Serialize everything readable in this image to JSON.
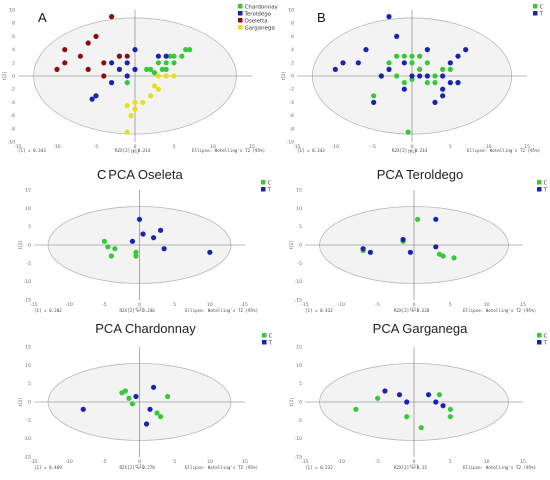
{
  "colors": {
    "Chardonnay": "#37c837",
    "Teroldego": "#1a22b0",
    "Oseletta": "#8b0d12",
    "Garganega": "#e8dc22",
    "C": "#37c837",
    "T": "#1a22b0",
    "ellipse_fill": "#f3f3f3",
    "ellipse_stroke": "#b8b8b8",
    "axis": "#777777"
  },
  "chart_data": [
    {
      "id": "A",
      "type": "scatter",
      "panel_label": "A",
      "title": "",
      "legend_position": "top-right",
      "xlim": [
        -15,
        15
      ],
      "ylim": [
        -10,
        10
      ],
      "xticks": [
        -15,
        -10,
        -5,
        0,
        5,
        10,
        15
      ],
      "yticks": [
        -10,
        -8,
        -6,
        -4,
        -2,
        0,
        2,
        4,
        6,
        8,
        10
      ],
      "xlabel": "t[1]",
      "ylabel": "t[2]",
      "ellipse": [
        13,
        8.8
      ],
      "footer": [
        "[1] = 0.343",
        "R2X[2] = 0.214",
        "Ellipse: Hotelling's T2 (95%)"
      ],
      "series": [
        {
          "name": "Chardonnay",
          "points": [
            [
              2.5,
              0.5
            ],
            [
              3.5,
              1
            ],
            [
              4,
              1
            ],
            [
              5,
              2
            ],
            [
              5,
              3
            ],
            [
              6,
              3
            ],
            [
              7,
              4
            ],
            [
              6.5,
              4
            ],
            [
              4,
              2
            ],
            [
              4.5,
              3
            ],
            [
              1.5,
              1
            ],
            [
              2,
              1
            ],
            [
              3,
              2
            ],
            [
              -1,
              -1
            ]
          ]
        },
        {
          "name": "Teroldego",
          "points": [
            [
              -5,
              -3
            ],
            [
              -5.5,
              -3.5
            ],
            [
              -3,
              -1
            ],
            [
              -3,
              2
            ],
            [
              -2,
              1
            ],
            [
              -1,
              0
            ],
            [
              0,
              1
            ],
            [
              0,
              4
            ],
            [
              3,
              3
            ],
            [
              4,
              3
            ],
            [
              -1,
              2
            ]
          ]
        },
        {
          "name": "Oseletta",
          "points": [
            [
              -10,
              1
            ],
            [
              -9,
              2
            ],
            [
              -9,
              4
            ],
            [
              -7,
              3
            ],
            [
              -6,
              1
            ],
            [
              -6,
              5
            ],
            [
              -5,
              6
            ],
            [
              -4,
              2
            ],
            [
              -4,
              0
            ],
            [
              -2,
              3
            ],
            [
              -1,
              3
            ],
            [
              -3,
              9
            ],
            [
              -2,
              3
            ]
          ]
        },
        {
          "name": "Garganega",
          "points": [
            [
              3,
              0
            ],
            [
              4,
              0
            ],
            [
              5,
              0
            ],
            [
              3,
              -2
            ],
            [
              2,
              -3
            ],
            [
              1,
              -4
            ],
            [
              0,
              -4
            ],
            [
              0,
              -5
            ],
            [
              -1,
              -4.5
            ],
            [
              -0.5,
              -6
            ],
            [
              -1,
              -8.5
            ],
            [
              2.5,
              -1.5
            ]
          ]
        }
      ]
    },
    {
      "id": "B",
      "type": "scatter",
      "panel_label": "B",
      "title": "",
      "legend_position": "top-right",
      "xlim": [
        -15,
        15
      ],
      "ylim": [
        -10,
        10
      ],
      "xticks": [
        -15,
        -10,
        -5,
        0,
        5,
        10,
        15
      ],
      "yticks": [
        -10,
        -8,
        -6,
        -4,
        -2,
        0,
        2,
        4,
        6,
        8,
        10
      ],
      "xlabel": "t[1]",
      "ylabel": "t[2]",
      "ellipse": [
        13,
        8.8
      ],
      "footer": [
        "[1] = 0.343",
        "R2X[2] = 0.214",
        "Ellipse: Hotelling's T2 (95%)"
      ],
      "series": [
        {
          "name": "C",
          "points": [
            [
              -5,
              -3
            ],
            [
              -4,
              0
            ],
            [
              -3,
              2
            ],
            [
              -2,
              3
            ],
            [
              -1,
              3
            ],
            [
              0,
              2
            ],
            [
              0,
              3
            ],
            [
              1,
              3
            ],
            [
              1,
              1
            ],
            [
              2,
              2
            ],
            [
              2,
              -1
            ],
            [
              3,
              0
            ],
            [
              3,
              -1
            ],
            [
              4,
              1
            ],
            [
              5,
              1
            ],
            [
              6,
              -1
            ],
            [
              -1,
              -1
            ],
            [
              -2,
              0
            ],
            [
              0,
              -0.5
            ],
            [
              -0.5,
              -8.5
            ]
          ]
        },
        {
          "name": "T",
          "points": [
            [
              -10,
              1
            ],
            [
              -9,
              2
            ],
            [
              -7,
              2
            ],
            [
              -6,
              4
            ],
            [
              -5,
              -4
            ],
            [
              -4,
              0
            ],
            [
              -3,
              1
            ],
            [
              -2,
              6
            ],
            [
              -3,
              9
            ],
            [
              -1,
              2
            ],
            [
              0,
              0
            ],
            [
              2,
              4
            ],
            [
              2,
              0
            ],
            [
              4,
              0
            ],
            [
              4,
              -2
            ],
            [
              5,
              2
            ],
            [
              6,
              3
            ],
            [
              5,
              -1
            ],
            [
              6,
              -1
            ],
            [
              3,
              -4
            ],
            [
              4,
              -3
            ],
            [
              7,
              4
            ],
            [
              1,
              0
            ],
            [
              -1,
              -2
            ]
          ]
        }
      ]
    },
    {
      "id": "C1",
      "type": "scatter",
      "panel_label": "C",
      "title": "PCA Oseleta",
      "legend_position": "top-right",
      "xlim": [
        -15,
        15
      ],
      "ylim": [
        -15,
        15
      ],
      "xticks": [
        -15,
        -10,
        -5,
        0,
        5,
        10,
        15
      ],
      "yticks": [
        -15,
        -10,
        -5,
        0,
        5,
        10,
        15
      ],
      "xlabel": "t[1]",
      "ylabel": "t[2]",
      "ellipse": [
        13,
        10.5
      ],
      "footer": [
        "[1] = 0.202",
        "R2X[2] = 0.246",
        "Ellipse: Hotelling's T2 (95%)"
      ],
      "series": [
        {
          "name": "C",
          "points": [
            [
              -5,
              1
            ],
            [
              -4.5,
              -0.5
            ],
            [
              -3.5,
              -1
            ],
            [
              -4,
              -3
            ],
            [
              -0.5,
              -2
            ],
            [
              -0.5,
              -3
            ]
          ]
        },
        {
          "name": "T",
          "points": [
            [
              -1,
              1
            ],
            [
              0,
              7
            ],
            [
              0.5,
              3
            ],
            [
              2,
              2
            ],
            [
              3,
              4
            ],
            [
              3.5,
              -1
            ],
            [
              10,
              -2
            ]
          ]
        }
      ]
    },
    {
      "id": "C2",
      "type": "scatter",
      "panel_label": "",
      "title": "PCA Teroldego",
      "legend_position": "top-right",
      "xlim": [
        -15,
        15
      ],
      "ylim": [
        -15,
        15
      ],
      "xticks": [
        -15,
        -10,
        -5,
        0,
        5,
        10,
        15
      ],
      "yticks": [
        -15,
        -10,
        -5,
        0,
        5,
        10,
        15
      ],
      "xlabel": "t[1]",
      "ylabel": "t[2]",
      "ellipse": [
        13,
        10.5
      ],
      "footer": [
        "[1] = 0.432",
        "R2X[2] = 0.228",
        "Ellipse: Hotelling's T2 (95%)"
      ],
      "series": [
        {
          "name": "C",
          "points": [
            [
              0.5,
              7
            ],
            [
              -1.5,
              1
            ],
            [
              -7,
              -1.5
            ],
            [
              3.5,
              -2.5
            ],
            [
              4,
              -3
            ],
            [
              5.5,
              -3.5
            ]
          ]
        },
        {
          "name": "T",
          "points": [
            [
              3,
              7
            ],
            [
              -1.5,
              1.5
            ],
            [
              -7,
              -1
            ],
            [
              -6,
              -2
            ],
            [
              3,
              -0.5
            ],
            [
              -0.5,
              -2
            ]
          ]
        }
      ]
    },
    {
      "id": "C3",
      "type": "scatter",
      "panel_label": "",
      "title": "PCA Chardonnay",
      "legend_position": "top-right",
      "xlim": [
        -15,
        15
      ],
      "ylim": [
        -15,
        15
      ],
      "xticks": [
        -15,
        -10,
        -5,
        0,
        5,
        10,
        15
      ],
      "yticks": [
        -15,
        -10,
        -5,
        0,
        5,
        10,
        15
      ],
      "xlabel": "t[1]",
      "ylabel": "t[2]",
      "ellipse": [
        13,
        10.5
      ],
      "footer": [
        "[1] = 0.469",
        "R2X[2] = 0.278",
        "Ellipse: Hotelling's T2 (95%)"
      ],
      "series": [
        {
          "name": "C",
          "points": [
            [
              -2,
              3
            ],
            [
              -1.5,
              1
            ],
            [
              -1,
              -0.5
            ],
            [
              -2.5,
              2.5
            ],
            [
              4,
              1.5
            ],
            [
              2.5,
              -3
            ],
            [
              3,
              -4
            ]
          ]
        },
        {
          "name": "T",
          "points": [
            [
              2,
              4
            ],
            [
              -0.5,
              1.5
            ],
            [
              1.5,
              -2
            ],
            [
              -8,
              -2
            ],
            [
              1,
              -6
            ]
          ]
        }
      ]
    },
    {
      "id": "C4",
      "type": "scatter",
      "panel_label": "",
      "title": "PCA Garganega",
      "legend_position": "top-right",
      "xlim": [
        -15,
        15
      ],
      "ylim": [
        -15,
        15
      ],
      "xticks": [
        -15,
        -10,
        -5,
        0,
        5,
        10,
        15
      ],
      "yticks": [
        -15,
        -10,
        -5,
        0,
        5,
        10,
        15
      ],
      "xlabel": "t[1]",
      "ylabel": "t[2]",
      "ellipse": [
        13,
        10.5
      ],
      "footer": [
        "[1] = 0.222",
        "R2X[2] = 0.13",
        "Ellipse: Hotelling's T2 (95%)"
      ],
      "series": [
        {
          "name": "C",
          "points": [
            [
              -5,
              1
            ],
            [
              -8,
              -2
            ],
            [
              -1,
              -4
            ],
            [
              1,
              -7
            ],
            [
              5,
              -2
            ],
            [
              5,
              -4
            ],
            [
              3.5,
              2
            ]
          ]
        },
        {
          "name": "T",
          "points": [
            [
              -4,
              3
            ],
            [
              -2,
              2
            ],
            [
              -1,
              0
            ],
            [
              2,
              2
            ],
            [
              3,
              0
            ],
            [
              4,
              -1
            ]
          ]
        }
      ]
    }
  ]
}
